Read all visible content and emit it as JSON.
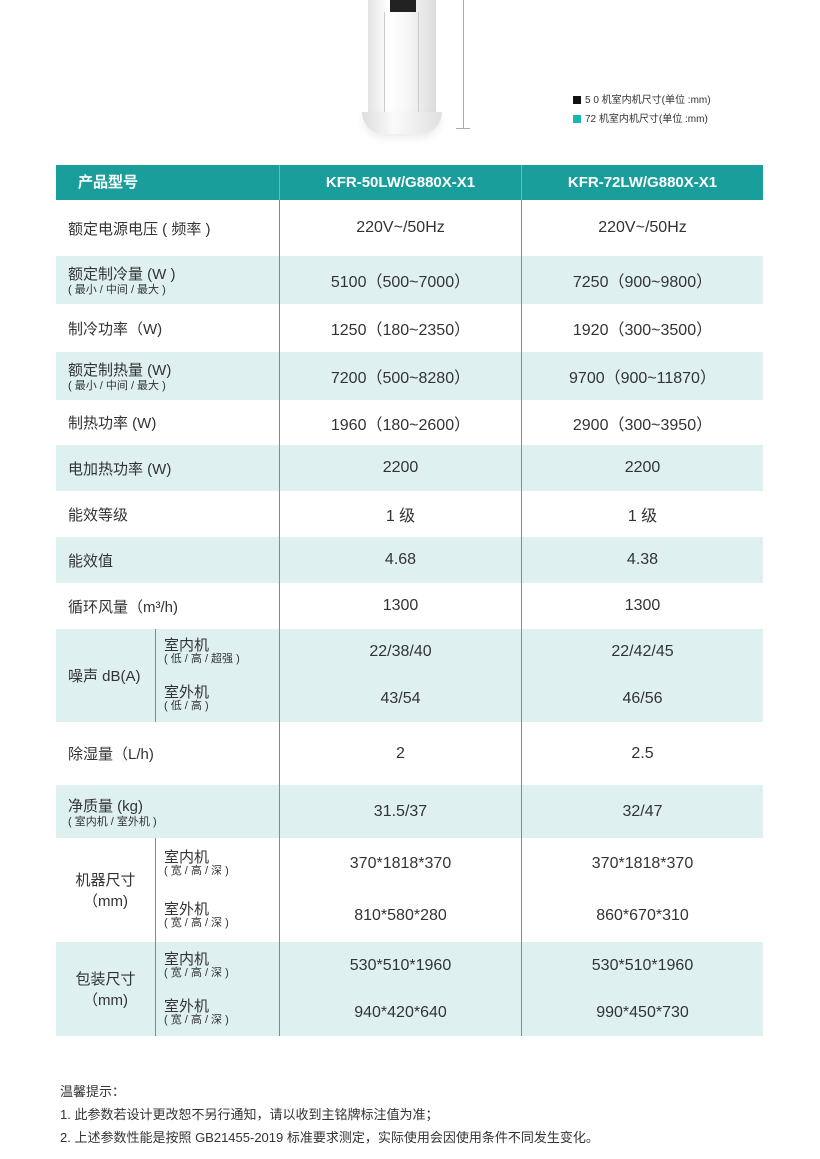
{
  "legend": [
    {
      "label": "5 0 机室内机尺寸(单位 :mm)",
      "color": "#111111"
    },
    {
      "label": "72 机室内机尺寸(单位 :mm)",
      "color": "#1ab5b0"
    }
  ],
  "colors": {
    "header": "#1a9e9c",
    "row_alt": "#dff0f1"
  },
  "table": {
    "header": {
      "label": "产品型号",
      "model1": "KFR-50LW/G880X-X1",
      "model2": "KFR-72LW/G880X-X1"
    },
    "rows": [
      {
        "label": "额定电源电压 ( 频率 )",
        "v1": "220V~/50Hz",
        "v2": "220V~/50Hz"
      },
      {
        "label": "额定制冷量 (W )",
        "sub": "( 最小 / 中间 / 最大 )",
        "v1": "5100（500~7000）",
        "v2": "7250（900~9800）"
      },
      {
        "label": "制冷功率（W)",
        "v1": "1250（180~2350）",
        "v2": "1920（300~3500）"
      },
      {
        "label": "额定制热量 (W)",
        "sub": "( 最小 / 中间 / 最大 )",
        "v1": "7200（500~8280）",
        "v2": "9700（900~11870）"
      },
      {
        "label": "制热功率 (W)",
        "v1": "1960（180~2600）",
        "v2": "2900（300~3950）"
      },
      {
        "label": "电加热功率 (W)",
        "v1": "2200",
        "v2": "2200"
      },
      {
        "label": "能效等级",
        "v1": "1 级",
        "v2": "1 级"
      },
      {
        "label": "能效值",
        "v1": "4.68",
        "v2": "4.38"
      },
      {
        "label": "循环风量（m³/h)",
        "v1": "1300",
        "v2": "1300"
      },
      {
        "label": "噪声 dB(A)",
        "parts": [
          {
            "name": "室内机",
            "note": "( 低 / 高 / 超强 )",
            "v1": "22/38/40",
            "v2": "22/42/45"
          },
          {
            "name": "室外机",
            "note": "( 低 / 高 )",
            "v1": "43/54",
            "v2": "46/56"
          }
        ]
      },
      {
        "label": "除湿量（L/h)",
        "v1": "2",
        "v2": "2.5"
      },
      {
        "label": "净质量 (kg)",
        "sub": "( 室内机 / 室外机 )",
        "v1": "31.5/37",
        "v2": "32/47"
      },
      {
        "label": "机器尺寸",
        "unit": "（mm)",
        "parts": [
          {
            "name": "室内机",
            "note": "( 宽 / 高 / 深 )",
            "v1": "370*1818*370",
            "v2": "370*1818*370"
          },
          {
            "name": "室外机",
            "note": "( 宽 / 高 / 深 )",
            "v1": "810*580*280",
            "v2": "860*670*310"
          }
        ]
      },
      {
        "label": "包装尺寸",
        "unit": "（mm)",
        "parts": [
          {
            "name": "室内机",
            "note": "( 宽 / 高 / 深 )",
            "v1": "530*510*1960",
            "v2": "530*510*1960"
          },
          {
            "name": "室外机",
            "note": "( 宽 / 高 / 深 )",
            "v1": "940*420*640",
            "v2": "990*450*730"
          }
        ]
      }
    ]
  },
  "notes": {
    "title": "温馨提示：",
    "items": [
      "1. 此参数若设计更改恕不另行通知，请以收到主铭牌标注值为准；",
      "2. 上述参数性能是按照 GB21455-2019 标准要求测定，实际使用会因使用条件不同发生变化。"
    ]
  }
}
